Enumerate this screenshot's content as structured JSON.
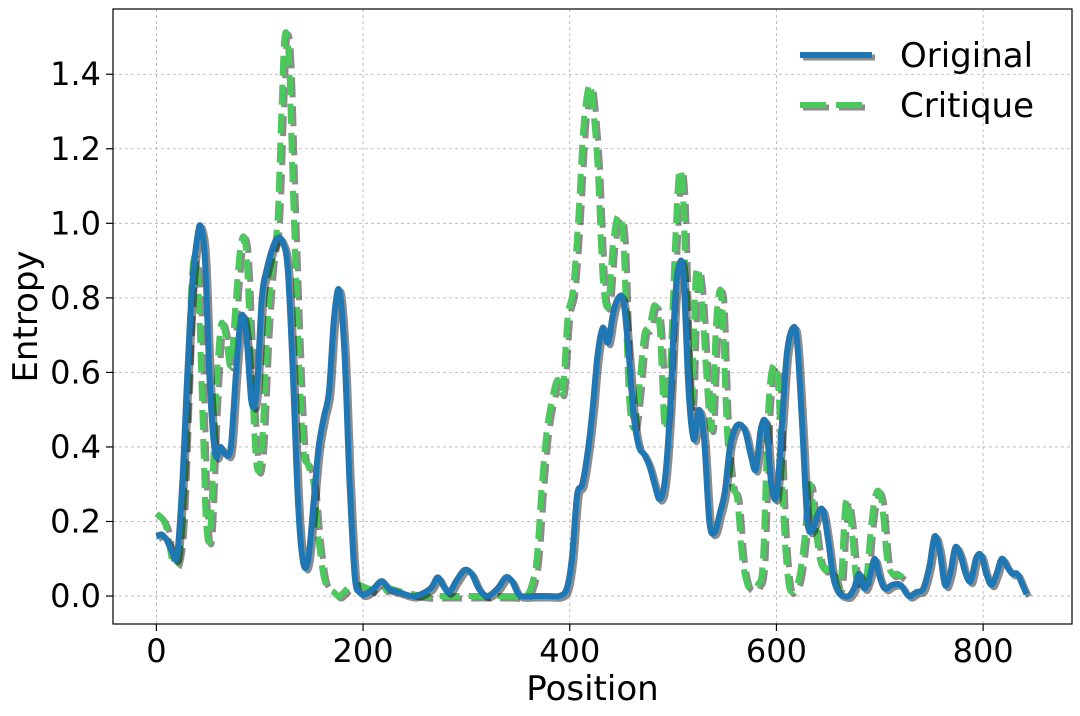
{
  "chart_data": {
    "type": "line",
    "title": "",
    "xlabel": "Position",
    "ylabel": "Entropy",
    "xlim": [
      -42,
      886
    ],
    "ylim": [
      -0.075,
      1.575
    ],
    "xticks": [
      0,
      200,
      400,
      600,
      800
    ],
    "yticks": [
      0.0,
      0.2,
      0.4,
      0.6,
      0.8,
      1.0,
      1.2,
      1.4
    ],
    "xtick_labels": [
      "0",
      "200",
      "400",
      "600",
      "800"
    ],
    "ytick_labels": [
      "0.0",
      "0.2",
      "0.4",
      "0.6",
      "0.8",
      "1.0",
      "1.2",
      "1.4"
    ],
    "grid": true,
    "legend_position": "top-right",
    "series": [
      {
        "name": "Original",
        "color": "#1f77b4",
        "style": "solid",
        "x": [
          0,
          5,
          10,
          15,
          20,
          25,
          30,
          35,
          40,
          43,
          47,
          52,
          57,
          62,
          67,
          72,
          77,
          82,
          87,
          92,
          97,
          102,
          107,
          112,
          117,
          122,
          127,
          132,
          137,
          142,
          147,
          152,
          157,
          162,
          167,
          172,
          177,
          182,
          187,
          192,
          197,
          202,
          210,
          218,
          225,
          235,
          250,
          265,
          272,
          277,
          283,
          290,
          298,
          305,
          312,
          320,
          330,
          338,
          344,
          352,
          365,
          380,
          390,
          397,
          402,
          407,
          412,
          417,
          422,
          427,
          432,
          437,
          442,
          447,
          452,
          457,
          462,
          467,
          472,
          477,
          482,
          487,
          492,
          497,
          502,
          506,
          510,
          515,
          520,
          525,
          530,
          535,
          540,
          545,
          550,
          555,
          560,
          565,
          570,
          575,
          580,
          585,
          590,
          595,
          600,
          605,
          610,
          616,
          620,
          625,
          630,
          635,
          640,
          645,
          650,
          655,
          660,
          665,
          670,
          675,
          680,
          685,
          690,
          695,
          700,
          705,
          712,
          720,
          728,
          735,
          742,
          748,
          753,
          758,
          763,
          768,
          773,
          778,
          783,
          788,
          793,
          798,
          803,
          808,
          813,
          818,
          823,
          828,
          833,
          838,
          842
        ],
        "values": [
          0.16,
          0.165,
          0.15,
          0.12,
          0.11,
          0.3,
          0.6,
          0.85,
          0.97,
          0.99,
          0.9,
          0.55,
          0.38,
          0.4,
          0.38,
          0.4,
          0.6,
          0.75,
          0.7,
          0.52,
          0.55,
          0.8,
          0.88,
          0.93,
          0.96,
          0.95,
          0.88,
          0.6,
          0.25,
          0.09,
          0.1,
          0.25,
          0.4,
          0.48,
          0.55,
          0.75,
          0.82,
          0.65,
          0.3,
          0.05,
          0.01,
          0.005,
          0.02,
          0.04,
          0.02,
          0.01,
          0.0,
          0.02,
          0.05,
          0.03,
          0.01,
          0.04,
          0.07,
          0.06,
          0.02,
          0.0,
          0.02,
          0.05,
          0.04,
          0.0,
          0.0,
          0.0,
          0.0,
          0.02,
          0.1,
          0.27,
          0.3,
          0.38,
          0.5,
          0.65,
          0.72,
          0.68,
          0.76,
          0.8,
          0.79,
          0.65,
          0.48,
          0.4,
          0.38,
          0.35,
          0.3,
          0.26,
          0.31,
          0.5,
          0.8,
          0.89,
          0.86,
          0.55,
          0.42,
          0.5,
          0.42,
          0.2,
          0.17,
          0.22,
          0.28,
          0.4,
          0.45,
          0.46,
          0.44,
          0.38,
          0.34,
          0.45,
          0.46,
          0.3,
          0.27,
          0.45,
          0.65,
          0.72,
          0.68,
          0.45,
          0.2,
          0.18,
          0.22,
          0.23,
          0.15,
          0.05,
          0.01,
          0.0,
          0.0,
          0.02,
          0.06,
          0.02,
          0.05,
          0.1,
          0.05,
          0.02,
          0.03,
          0.03,
          0.0,
          0.01,
          0.02,
          0.08,
          0.16,
          0.12,
          0.03,
          0.06,
          0.13,
          0.11,
          0.06,
          0.04,
          0.1,
          0.11,
          0.06,
          0.03,
          0.06,
          0.1,
          0.08,
          0.06,
          0.06,
          0.03,
          0.005
        ]
      },
      {
        "name": "Critique",
        "color": "#4cc95c",
        "style": "dashed",
        "x": [
          0,
          5,
          10,
          15,
          20,
          25,
          30,
          35,
          40,
          45,
          48,
          52,
          57,
          62,
          67,
          72,
          77,
          82,
          87,
          92,
          97,
          102,
          107,
          112,
          117,
          121,
          124,
          128,
          132,
          137,
          142,
          147,
          152,
          157,
          162,
          167,
          172,
          177,
          185,
          195,
          205,
          215,
          225,
          240,
          260,
          280,
          300,
          320,
          340,
          355,
          362,
          368,
          373,
          378,
          383,
          388,
          393,
          398,
          403,
          408,
          413,
          417,
          420,
          423,
          427,
          432,
          437,
          442,
          447,
          452,
          457,
          462,
          467,
          472,
          477,
          482,
          487,
          492,
          497,
          502,
          506,
          510,
          514,
          518,
          522,
          527,
          532,
          537,
          542,
          547,
          552,
          557,
          562,
          567,
          572,
          577,
          582,
          587,
          592,
          597,
          602,
          607,
          612,
          617,
          622,
          627,
          632,
          637,
          642,
          647,
          652,
          657,
          662,
          667,
          672,
          677,
          682,
          687,
          692,
          697,
          702,
          707,
          712,
          717,
          722
        ],
        "values": [
          0.22,
          0.21,
          0.18,
          0.1,
          0.09,
          0.2,
          0.55,
          0.88,
          0.85,
          0.45,
          0.2,
          0.17,
          0.5,
          0.72,
          0.7,
          0.62,
          0.8,
          0.95,
          0.92,
          0.6,
          0.35,
          0.4,
          0.7,
          0.9,
          1.0,
          1.3,
          1.5,
          1.45,
          1.1,
          0.7,
          0.4,
          0.35,
          0.3,
          0.15,
          0.05,
          0.02,
          0.01,
          0.0,
          0.02,
          0.03,
          0.02,
          0.01,
          0.02,
          0.01,
          0.0,
          0.0,
          0.0,
          0.0,
          0.0,
          0.0,
          0.02,
          0.1,
          0.3,
          0.45,
          0.53,
          0.58,
          0.55,
          0.75,
          0.82,
          1.0,
          1.25,
          1.35,
          1.37,
          1.3,
          1.15,
          0.85,
          0.78,
          0.95,
          1.02,
          0.95,
          0.55,
          0.45,
          0.55,
          0.7,
          0.72,
          0.78,
          0.72,
          0.45,
          0.6,
          0.95,
          1.14,
          1.05,
          0.65,
          0.52,
          0.86,
          0.82,
          0.6,
          0.45,
          0.75,
          0.8,
          0.45,
          0.3,
          0.26,
          0.1,
          0.03,
          0.02,
          0.03,
          0.1,
          0.5,
          0.62,
          0.55,
          0.2,
          0.03,
          0.02,
          0.05,
          0.15,
          0.3,
          0.2,
          0.1,
          0.07,
          0.08,
          0.05,
          0.03,
          0.25,
          0.2,
          0.05,
          0.03,
          0.05,
          0.2,
          0.28,
          0.25,
          0.1,
          0.06,
          0.06,
          0.05
        ]
      }
    ]
  }
}
